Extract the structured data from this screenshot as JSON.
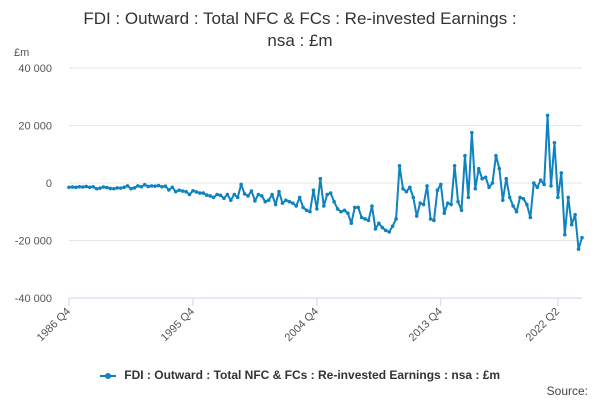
{
  "chart_data": {
    "type": "line",
    "title": "FDI : Outward : Total NFC & FCs : Re-invested Earnings : nsa : £m",
    "title_line1": "FDI : Outward : Total NFC & FCs : Re-invested Earnings :",
    "title_line2": "nsa : £m",
    "ylabel": "£m",
    "ylim": [
      -40000,
      40000
    ],
    "yticks": [
      -40000,
      -20000,
      0,
      20000,
      40000
    ],
    "ytick_labels": [
      "-40 000",
      "-20 000",
      "0",
      "20 000",
      "40 000"
    ],
    "xtick_labels": [
      "1986 Q4",
      "1995 Q4",
      "2004 Q4",
      "2013 Q4",
      "2022 Q2"
    ],
    "xtick_index": [
      0,
      36,
      72,
      108,
      142
    ],
    "grid": true,
    "legend": "bottom",
    "series": [
      {
        "name": "FDI : Outward : Total NFC & FCs : Re-invested Earnings : nsa : £m",
        "color": "#0f82c0",
        "values": [
          -1500,
          -1400,
          -1500,
          -1300,
          -1400,
          -1200,
          -1500,
          -1300,
          -2000,
          -1800,
          -1400,
          -1600,
          -1900,
          -2000,
          -1700,
          -1800,
          -1500,
          -1000,
          -2000,
          -1700,
          -1000,
          -1300,
          -600,
          -1200,
          -1000,
          -1100,
          -900,
          -1300,
          -1100,
          -2400,
          -1500,
          -3000,
          -2500,
          -2800,
          -3000,
          -4000,
          -2700,
          -3100,
          -3500,
          -3500,
          -4200,
          -4500,
          -5000,
          -4000,
          -4300,
          -5300,
          -4000,
          -6000,
          -4000,
          -5000,
          -500,
          -3800,
          -4500,
          -2800,
          -6200,
          -4000,
          -4500,
          -6500,
          -6000,
          -4000,
          -7500,
          -3000,
          -7000,
          -6000,
          -6500,
          -7000,
          -8000,
          -5000,
          -8500,
          -9500,
          -10000,
          -2500,
          -9000,
          1500,
          -8000,
          -4000,
          -3500,
          -6500,
          -9000,
          -10000,
          -9500,
          -10500,
          -14000,
          -8500,
          -8500,
          -12000,
          -12500,
          -13000,
          -8000,
          -16000,
          -14000,
          -15500,
          -16500,
          -17000,
          -15000,
          -12500,
          6000,
          -2000,
          -3000,
          -1500,
          -5000,
          -11500,
          -7000,
          -7500,
          -1000,
          -12500,
          -13000,
          -2500,
          -500,
          -10500,
          -7000,
          -7500,
          6000,
          -6500,
          -9500,
          9500,
          -5000,
          17500,
          -2000,
          5000,
          1500,
          2000,
          -1500,
          0,
          9500,
          5000,
          -6000,
          1500,
          -5000,
          -8000,
          -10000,
          -5000,
          -5500,
          -7500,
          -12000,
          0,
          -1500,
          1000,
          -500,
          23500,
          -1000,
          14000,
          -5000,
          3500,
          -18000,
          -5000,
          -14500,
          -11000,
          -23000,
          -19000
        ]
      }
    ],
    "source_label": "Source:"
  }
}
